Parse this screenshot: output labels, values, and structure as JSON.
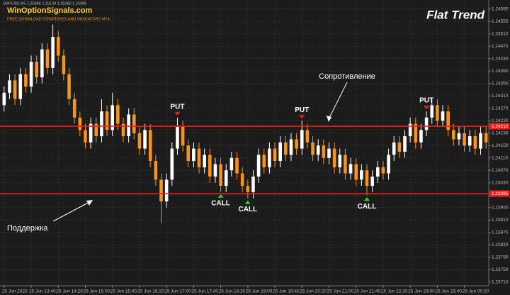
{
  "chart_data": {
    "type": "candlestick",
    "symbol_info": "GBPUSD,M5  1.25886 1.25128 1.25080 1.25080",
    "watermark": "WinOptionSignals.com",
    "watermark_subtitle": "FREE DOWNLOAD STRATEGIES AND INDICATORS MT4",
    "title": "Flat Trend",
    "resistance_label": "Сопротивление",
    "support_label": "Поддержка",
    "up_color": "#ffffff",
    "down_color": "#f7931e",
    "level_color": "#ff1a1a",
    "grid": true,
    "ylim": [
      1.23698,
      1.24619
    ],
    "yticks": [
      {
        "value": 1.2459,
        "label": "1.24590"
      },
      {
        "value": 1.2455,
        "label": "1.24550"
      },
      {
        "value": 1.2451,
        "label": "1.24510"
      },
      {
        "value": 1.2447,
        "label": "1.24470"
      },
      {
        "value": 1.2443,
        "label": "1.24430"
      },
      {
        "value": 1.2439,
        "label": "1.24390"
      },
      {
        "value": 1.2435,
        "label": "1.24350"
      },
      {
        "value": 1.2431,
        "label": "1.24310"
      },
      {
        "value": 1.2427,
        "label": "1.24270"
      },
      {
        "value": 1.2423,
        "label": "1.24230"
      },
      {
        "value": 1.2419,
        "label": "1.24190"
      },
      {
        "value": 1.2415,
        "label": "1.24150"
      },
      {
        "value": 1.2411,
        "label": "1.24110"
      },
      {
        "value": 1.2407,
        "label": "1.24070"
      },
      {
        "value": 1.2403,
        "label": "1.24030"
      },
      {
        "value": 1.2399,
        "label": "1.23990"
      },
      {
        "value": 1.2395,
        "label": "1.23950"
      },
      {
        "value": 1.2391,
        "label": "1.23910"
      },
      {
        "value": 1.2387,
        "label": "1.23870"
      },
      {
        "value": 1.2383,
        "label": "1.23830"
      },
      {
        "value": 1.2379,
        "label": "1.23790"
      },
      {
        "value": 1.2375,
        "label": "1.23750"
      },
      {
        "value": 1.2371,
        "label": "1.23710"
      }
    ],
    "levels": [
      {
        "value": 1.24212,
        "label": "1.24212"
      },
      {
        "value": 1.23995,
        "label": "1.23995"
      }
    ],
    "categories": [
      "25 Jun 2020",
      null,
      null,
      null,
      null,
      "25 Jun 13:40",
      null,
      null,
      null,
      null,
      "25 Jun 14:20",
      null,
      null,
      null,
      null,
      "25 Jun 15:00",
      null,
      null,
      null,
      null,
      "25 Jun 15:40",
      null,
      null,
      null,
      null,
      "25 Jun 16:20",
      null,
      null,
      null,
      null,
      "25 Jun 17:00",
      null,
      null,
      null,
      null,
      "25 Jun 17:40",
      null,
      null,
      null,
      null,
      "25 Jun 18:20",
      null,
      null,
      null,
      null,
      "25 Jun 19:00",
      null,
      null,
      null,
      null,
      "25 Jun 19:40",
      null,
      null,
      null,
      null,
      "25 Jun 20:20",
      null,
      null,
      null,
      null,
      "25 Jun 21:00",
      null,
      null,
      null,
      null,
      "25 Jun 21:40",
      null,
      null,
      null,
      null,
      "25 Jun 22:20",
      null,
      null,
      null,
      null,
      "25 Jun 23:00",
      null,
      null,
      null,
      null,
      "25 Jun 23:40",
      null,
      null,
      null,
      null,
      "26 Jun 00:20",
      null,
      null,
      null,
      null
    ],
    "ohlc": {
      "open": [
        1.2428,
        1.2432,
        1.2436,
        1.243,
        1.2438,
        1.2434,
        1.2442,
        1.2437,
        1.2446,
        1.244,
        1.245,
        1.2444,
        1.2438,
        1.243,
        1.2424,
        1.242,
        1.2416,
        1.2422,
        1.2418,
        1.2426,
        1.242,
        1.2428,
        1.2422,
        1.2418,
        1.2425,
        1.2419,
        1.2414,
        1.242,
        1.241,
        1.2404,
        1.2397,
        1.2404,
        1.2414,
        1.2421,
        1.2415,
        1.241,
        1.2414,
        1.2408,
        1.2412,
        1.2405,
        1.2409,
        1.2402,
        1.2407,
        1.2411,
        1.2406,
        1.2402,
        1.24,
        1.2405,
        1.2412,
        1.2408,
        1.2414,
        1.241,
        1.2416,
        1.2412,
        1.2417,
        1.2414,
        1.242,
        1.2416,
        1.2412,
        1.2415,
        1.2411,
        1.2414,
        1.2408,
        1.2412,
        1.2406,
        1.2409,
        1.2404,
        1.2407,
        1.2402,
        1.2405,
        1.2408,
        1.2406,
        1.2412,
        1.2416,
        1.2413,
        1.2418,
        1.2422,
        1.2416,
        1.242,
        1.2424,
        1.2428,
        1.2423,
        1.2426,
        1.242,
        1.2417,
        1.2419,
        1.2415,
        1.2418,
        1.2414,
        1.2419
      ],
      "high": [
        1.2434,
        1.2438,
        1.2438,
        1.244,
        1.244,
        1.2444,
        1.2444,
        1.2448,
        1.2448,
        1.2454,
        1.2452,
        1.2446,
        1.244,
        1.2432,
        1.2426,
        1.2422,
        1.2424,
        1.2424,
        1.243,
        1.2428,
        1.2432,
        1.243,
        1.2424,
        1.2427,
        1.2427,
        1.2421,
        1.2422,
        1.2422,
        1.2412,
        1.2406,
        1.2406,
        1.2416,
        1.2424,
        1.2423,
        1.2417,
        1.2416,
        1.2416,
        1.2414,
        1.2414,
        1.2411,
        1.2411,
        1.2409,
        1.2413,
        1.2413,
        1.2408,
        1.2404,
        1.2407,
        1.2414,
        1.2414,
        1.2416,
        1.2416,
        1.2418,
        1.2418,
        1.2419,
        1.2419,
        1.2423,
        1.2422,
        1.2418,
        1.2417,
        1.2417,
        1.2416,
        1.2416,
        1.2414,
        1.2414,
        1.2411,
        1.2411,
        1.2409,
        1.2409,
        1.2407,
        1.241,
        1.241,
        1.2414,
        1.2418,
        1.2418,
        1.242,
        1.2424,
        1.2424,
        1.2422,
        1.2426,
        1.243,
        1.243,
        1.2428,
        1.2428,
        1.2422,
        1.2421,
        1.2421,
        1.242,
        1.242,
        1.2421,
        1.2421
      ],
      "low": [
        1.2426,
        1.243,
        1.2428,
        1.2428,
        1.2432,
        1.2432,
        1.2435,
        1.2435,
        1.2438,
        1.2438,
        1.2442,
        1.2436,
        1.2428,
        1.2422,
        1.2418,
        1.2414,
        1.2414,
        1.2416,
        1.2416,
        1.2418,
        1.2418,
        1.242,
        1.2416,
        1.2416,
        1.2417,
        1.2412,
        1.2412,
        1.2408,
        1.2402,
        1.239,
        1.2395,
        1.2402,
        1.2412,
        1.2413,
        1.2408,
        1.2408,
        1.2406,
        1.2406,
        1.2403,
        1.2403,
        1.24,
        1.24,
        1.2405,
        1.2404,
        1.24,
        1.2398,
        1.2398,
        1.2403,
        1.2406,
        1.2406,
        1.2408,
        1.2408,
        1.241,
        1.241,
        1.2412,
        1.2412,
        1.2414,
        1.241,
        1.241,
        1.2409,
        1.2409,
        1.2406,
        1.2406,
        1.2404,
        1.2404,
        1.2402,
        1.2402,
        1.2399,
        1.24,
        1.2403,
        1.2404,
        1.2404,
        1.241,
        1.2411,
        1.2411,
        1.2416,
        1.2414,
        1.2414,
        1.2418,
        1.2422,
        1.2421,
        1.2421,
        1.2418,
        1.2415,
        1.2415,
        1.2413,
        1.2413,
        1.2412,
        1.2412,
        1.2414
      ],
      "close": [
        1.2432,
        1.2436,
        1.243,
        1.2438,
        1.2434,
        1.2442,
        1.2437,
        1.2446,
        1.244,
        1.245,
        1.2444,
        1.2438,
        1.243,
        1.2424,
        1.242,
        1.2416,
        1.2422,
        1.2418,
        1.2426,
        1.242,
        1.2428,
        1.2422,
        1.2418,
        1.2425,
        1.2419,
        1.2414,
        1.242,
        1.241,
        1.2404,
        1.2397,
        1.2404,
        1.2414,
        1.2421,
        1.2415,
        1.241,
        1.2414,
        1.2408,
        1.2412,
        1.2405,
        1.2409,
        1.2402,
        1.2407,
        1.2411,
        1.2406,
        1.2402,
        1.24,
        1.2405,
        1.2412,
        1.2408,
        1.2414,
        1.241,
        1.2416,
        1.2412,
        1.2417,
        1.2414,
        1.242,
        1.2416,
        1.2412,
        1.2415,
        1.2411,
        1.2414,
        1.2408,
        1.2412,
        1.2406,
        1.2409,
        1.2404,
        1.2407,
        1.2402,
        1.2405,
        1.2408,
        1.2406,
        1.2412,
        1.2416,
        1.2413,
        1.2418,
        1.2422,
        1.2416,
        1.242,
        1.2424,
        1.2428,
        1.2423,
        1.2426,
        1.242,
        1.2417,
        1.2419,
        1.2415,
        1.2418,
        1.2414,
        1.2419,
        1.2416
      ]
    },
    "signals": [
      {
        "label": "PUT",
        "candle": 32
      },
      {
        "label": "CALL",
        "candle": 40
      },
      {
        "label": "CALL",
        "candle": 45
      },
      {
        "label": "PUT",
        "candle": 55
      },
      {
        "label": "CALL",
        "candle": 67
      },
      {
        "label": "PUT",
        "candle": 78
      }
    ]
  }
}
